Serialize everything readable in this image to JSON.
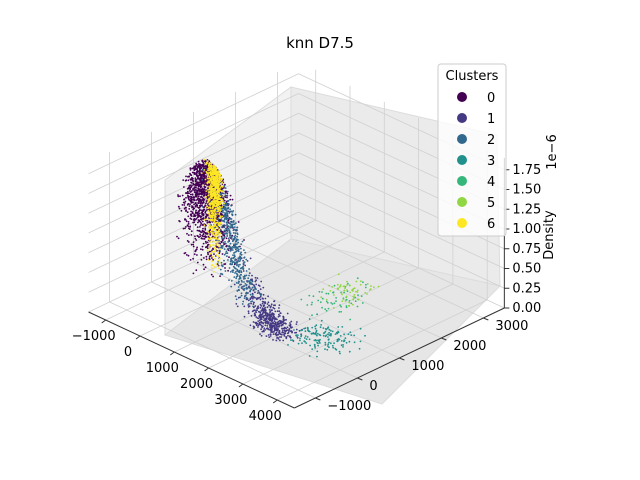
{
  "chart_data": {
    "type": "scatter",
    "title": "knn D7.5",
    "xlabel": "",
    "ylabel": "",
    "zlabel": "Density",
    "z_offset_text": "1e−6",
    "x_ticks": [
      "−1000",
      "0",
      "1000",
      "2000",
      "3000",
      "4000"
    ],
    "y_ticks": [
      "−1000",
      "0",
      "1000",
      "2000",
      "3000"
    ],
    "z_ticks": [
      "0.00",
      "0.25",
      "0.50",
      "0.75",
      "1.00",
      "1.25",
      "1.50",
      "1.75"
    ],
    "xlim": [
      -1500,
      4500
    ],
    "ylim": [
      -1500,
      3500
    ],
    "zlim": [
      0,
      1.9e-06
    ],
    "grid": true,
    "legend": {
      "title": "Clusters",
      "placement": "top-right",
      "entries": [
        "0",
        "1",
        "2",
        "3",
        "4",
        "5",
        "6"
      ]
    },
    "series": [
      {
        "name": "0",
        "color": "#440154",
        "x_range": [
          -900,
          900
        ],
        "y_range": [
          -400,
          600
        ],
        "approx_points": 1500
      },
      {
        "name": "1",
        "color": "#443983",
        "x_range": [
          500,
          2700
        ],
        "y_range": [
          -300,
          800
        ],
        "approx_points": 500
      },
      {
        "name": "2",
        "color": "#31688e",
        "x_range": [
          -300,
          1600
        ],
        "y_range": [
          -200,
          500
        ],
        "approx_points": 500
      },
      {
        "name": "3",
        "color": "#21918c",
        "x_range": [
          1500,
          4000
        ],
        "y_range": [
          -200,
          1500
        ],
        "approx_points": 150
      },
      {
        "name": "4",
        "color": "#35b779",
        "x_range": [
          700,
          3000
        ],
        "y_range": [
          500,
          3000
        ],
        "approx_points": 60
      },
      {
        "name": "5",
        "color": "#90d743",
        "x_range": [
          700,
          2600
        ],
        "y_range": [
          1000,
          3000
        ],
        "approx_points": 60
      },
      {
        "name": "6",
        "color": "#fde725",
        "x_range": [
          -100,
          400
        ],
        "y_range": [
          -100,
          400
        ],
        "approx_points": 700
      }
    ]
  }
}
